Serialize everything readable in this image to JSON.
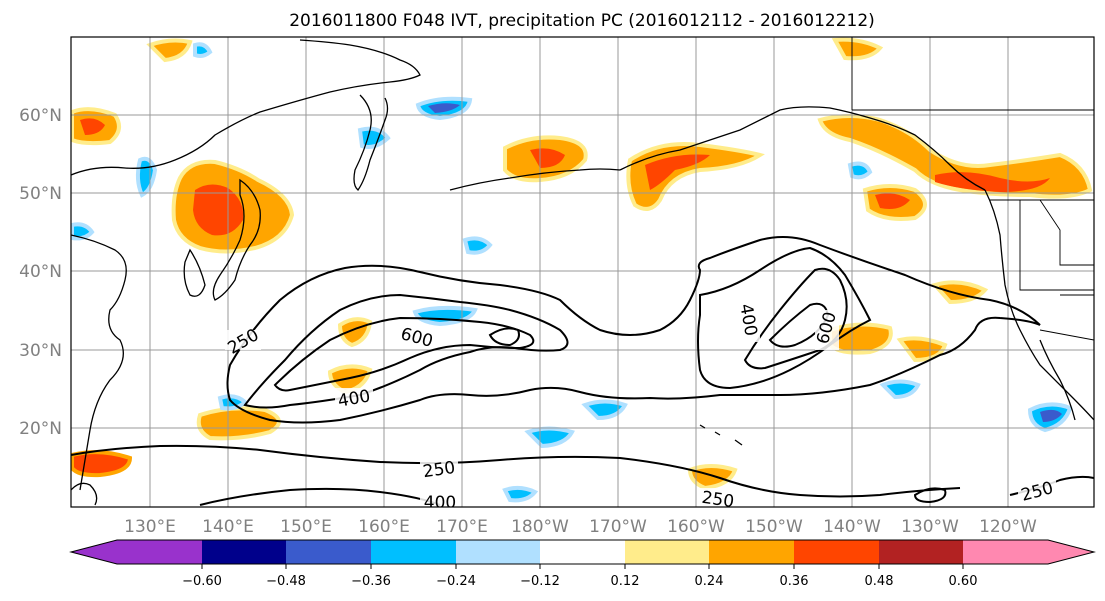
{
  "title": "2016011800 F048 IVT, precipitation PC (2016012112 - 2016012212)",
  "map": {
    "lon_labels": [
      "130°E",
      "140°E",
      "150°E",
      "160°E",
      "170°E",
      "180°W",
      "170°W",
      "160°W",
      "150°W",
      "140°W",
      "130°W",
      "120°W"
    ],
    "lat_labels": [
      "60°N",
      "50°N",
      "40°N",
      "30°N",
      "20°N"
    ],
    "grid": true,
    "ivt_contour_labels": [
      "250",
      "600",
      "400",
      "400",
      "600",
      "250",
      "400",
      "250",
      "250",
      "600"
    ]
  },
  "colorbar": {
    "ticks": [
      "−0.60",
      "−0.48",
      "−0.36",
      "−0.24",
      "−0.12",
      "0.12",
      "0.24",
      "0.36",
      "0.48",
      "0.60"
    ],
    "colors": [
      "#9932cc",
      "#00008b",
      "#3a5bcc",
      "#00bfff",
      "#b0e0ff",
      "#ffffff",
      "#ffec8b",
      "#ffa500",
      "#ff4500",
      "#b22222",
      "#ff88b0"
    ]
  },
  "colors": {
    "neg_strong": "#3a5bcc",
    "neg": "#00bfff",
    "neg_light": "#b0e0ff",
    "pos_light": "#ffec8b",
    "pos": "#ffa500",
    "pos_strong": "#ff4500"
  }
}
